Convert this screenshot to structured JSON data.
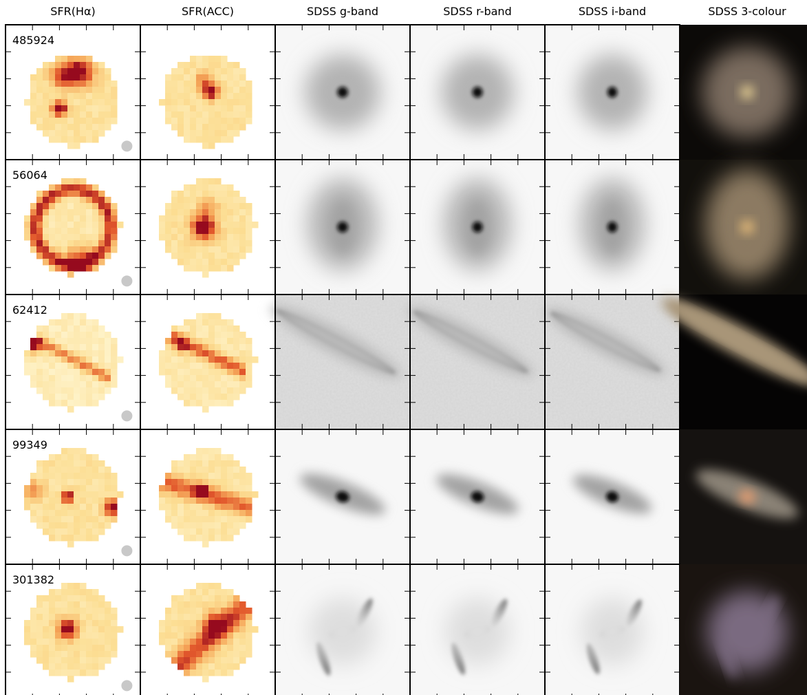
{
  "columns": [
    "SFR(Hα)",
    "SFR(ACC)",
    "SDSS g-band",
    "SDSS r-band",
    "SDSS i-band",
    "SDSS 3-colour"
  ],
  "rows": [
    {
      "id": "485924"
    },
    {
      "id": "56064"
    },
    {
      "id": "62412"
    },
    {
      "id": "99349"
    },
    {
      "id": "301382"
    }
  ]
}
